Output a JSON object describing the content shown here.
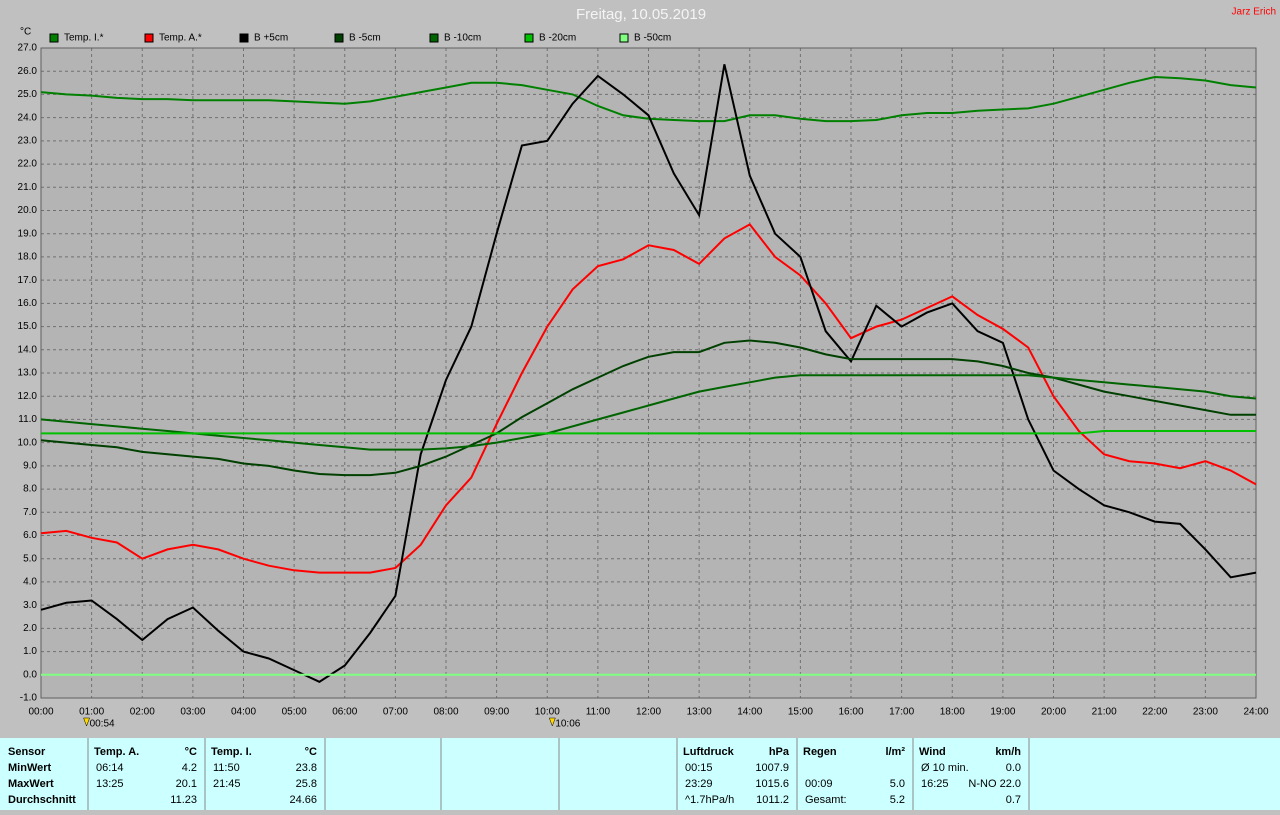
{
  "chart_data": {
    "type": "line",
    "title": "Freitag, 10.05.2019",
    "author": "Jarz Erich",
    "y_unit": "°C",
    "x": [
      0,
      0.5,
      1,
      1.5,
      2,
      2.5,
      3,
      3.5,
      4,
      4.5,
      5,
      5.5,
      6,
      6.5,
      7,
      7.5,
      8,
      8.5,
      9,
      9.5,
      10,
      10.5,
      11,
      11.5,
      12,
      12.5,
      13,
      13.5,
      14,
      14.5,
      15,
      15.5,
      16,
      16.5,
      17,
      17.5,
      18,
      18.5,
      19,
      19.5,
      20,
      20.5,
      21,
      21.5,
      22,
      22.5,
      23,
      23.5,
      24
    ],
    "xlim": [
      0,
      24
    ],
    "xticks": [
      {
        "value": 0,
        "label": "00:00"
      },
      {
        "value": 1,
        "label": "01:00"
      },
      {
        "value": 2,
        "label": "02:00"
      },
      {
        "value": 3,
        "label": "03:00"
      },
      {
        "value": 4,
        "label": "04:00"
      },
      {
        "value": 5,
        "label": "05:00"
      },
      {
        "value": 6,
        "label": "06:00"
      },
      {
        "value": 7,
        "label": "07:00"
      },
      {
        "value": 8,
        "label": "08:00"
      },
      {
        "value": 9,
        "label": "09:00"
      },
      {
        "value": 10,
        "label": "10:00"
      },
      {
        "value": 11,
        "label": "11:00"
      },
      {
        "value": 12,
        "label": "12:00"
      },
      {
        "value": 13,
        "label": "13:00"
      },
      {
        "value": 14,
        "label": "14:00"
      },
      {
        "value": 15,
        "label": "15:00"
      },
      {
        "value": 16,
        "label": "16:00"
      },
      {
        "value": 17,
        "label": "17:00"
      },
      {
        "value": 18,
        "label": "18:00"
      },
      {
        "value": 19,
        "label": "19:00"
      },
      {
        "value": 20,
        "label": "20:00"
      },
      {
        "value": 21,
        "label": "21:00"
      },
      {
        "value": 22,
        "label": "22:00"
      },
      {
        "value": 23,
        "label": "23:00"
      },
      {
        "value": 24,
        "label": "24:00"
      }
    ],
    "ylim": [
      -1,
      27
    ],
    "yticks": [
      {
        "value": -1,
        "label": "-1.0"
      },
      {
        "value": 0,
        "label": "0.0"
      },
      {
        "value": 1,
        "label": "1.0"
      },
      {
        "value": 2,
        "label": "2.0"
      },
      {
        "value": 3,
        "label": "3.0"
      },
      {
        "value": 4,
        "label": "4.0"
      },
      {
        "value": 5,
        "label": "5.0"
      },
      {
        "value": 6,
        "label": "6.0"
      },
      {
        "value": 7,
        "label": "7.0"
      },
      {
        "value": 8,
        "label": "8.0"
      },
      {
        "value": 9,
        "label": "9.0"
      },
      {
        "value": 10,
        "label": "10.0"
      },
      {
        "value": 11,
        "label": "11.0"
      },
      {
        "value": 12,
        "label": "12.0"
      },
      {
        "value": 13,
        "label": "13.0"
      },
      {
        "value": 14,
        "label": "14.0"
      },
      {
        "value": 15,
        "label": "15.0"
      },
      {
        "value": 16,
        "label": "16.0"
      },
      {
        "value": 17,
        "label": "17.0"
      },
      {
        "value": 18,
        "label": "18.0"
      },
      {
        "value": 19,
        "label": "19.0"
      },
      {
        "value": 20,
        "label": "20.0"
      },
      {
        "value": 21,
        "label": "21.0"
      },
      {
        "value": 22,
        "label": "22.0"
      },
      {
        "value": 23,
        "label": "23.0"
      },
      {
        "value": 24,
        "label": "24.0"
      },
      {
        "value": 25,
        "label": "25.0"
      },
      {
        "value": 26,
        "label": "26.0"
      },
      {
        "value": 27,
        "label": "27.0"
      }
    ],
    "grid": true,
    "series": [
      {
        "name": "Temp. I.*",
        "color": "#008000",
        "values": [
          25.1,
          25.0,
          24.95,
          24.85,
          24.8,
          24.8,
          24.75,
          24.75,
          24.75,
          24.75,
          24.7,
          24.65,
          24.6,
          24.7,
          24.9,
          25.1,
          25.3,
          25.5,
          25.5,
          25.4,
          25.2,
          25.0,
          24.5,
          24.1,
          23.95,
          23.9,
          23.85,
          23.85,
          24.1,
          24.1,
          23.95,
          23.85,
          23.85,
          23.9,
          24.1,
          24.2,
          24.2,
          24.3,
          24.35,
          24.4,
          24.6,
          24.9,
          25.2,
          25.5,
          25.75,
          25.7,
          25.6,
          25.4,
          25.3
        ]
      },
      {
        "name": "Temp. A.*",
        "color": "#ff0000",
        "values": [
          6.1,
          6.2,
          5.9,
          5.7,
          5.0,
          5.4,
          5.6,
          5.4,
          5.0,
          4.7,
          4.5,
          4.4,
          4.4,
          4.4,
          4.6,
          5.6,
          7.3,
          8.5,
          10.8,
          13.0,
          15.0,
          16.6,
          17.6,
          17.9,
          18.5,
          18.3,
          17.7,
          18.8,
          19.4,
          18.0,
          17.2,
          16.0,
          14.5,
          15.0,
          15.3,
          15.8,
          16.3,
          15.5,
          14.9,
          14.1,
          12.0,
          10.5,
          9.5,
          9.2,
          9.1,
          8.9,
          9.2,
          8.8,
          8.2
        ]
      },
      {
        "name": "B +5cm",
        "color": "#000000",
        "values": [
          2.8,
          3.1,
          3.2,
          2.4,
          1.5,
          2.4,
          2.9,
          1.9,
          1.0,
          0.7,
          0.2,
          -0.3,
          0.4,
          1.8,
          3.4,
          9.5,
          12.7,
          15.0,
          19.0,
          22.8,
          23.0,
          24.6,
          25.8,
          25.0,
          24.1,
          21.6,
          19.8,
          26.3,
          21.5,
          19.0,
          18.0,
          14.8,
          13.5,
          15.9,
          15.0,
          15.6,
          16.0,
          14.8,
          14.3,
          11.0,
          8.8,
          8.0,
          7.3,
          7.0,
          6.6,
          6.5,
          5.4,
          4.2,
          4.4
        ]
      },
      {
        "name": "B -5cm",
        "color": "#004000",
        "values": [
          10.1,
          10.0,
          9.9,
          9.8,
          9.6,
          9.5,
          9.4,
          9.3,
          9.1,
          9.0,
          8.8,
          8.65,
          8.6,
          8.6,
          8.7,
          9.0,
          9.4,
          9.9,
          10.4,
          11.1,
          11.7,
          12.3,
          12.8,
          13.3,
          13.7,
          13.9,
          13.9,
          14.3,
          14.4,
          14.3,
          14.1,
          13.8,
          13.6,
          13.6,
          13.6,
          13.6,
          13.6,
          13.5,
          13.3,
          13.0,
          12.8,
          12.5,
          12.2,
          12.0,
          11.8,
          11.6,
          11.4,
          11.2,
          11.2
        ]
      },
      {
        "name": "B -10cm",
        "color": "#006400",
        "values": [
          11.0,
          10.9,
          10.8,
          10.7,
          10.6,
          10.5,
          10.4,
          10.3,
          10.2,
          10.1,
          10.0,
          9.9,
          9.8,
          9.7,
          9.7,
          9.7,
          9.75,
          9.85,
          10.0,
          10.2,
          10.4,
          10.7,
          11.0,
          11.3,
          11.6,
          11.9,
          12.2,
          12.4,
          12.6,
          12.8,
          12.9,
          12.9,
          12.9,
          12.9,
          12.9,
          12.9,
          12.9,
          12.9,
          12.9,
          12.9,
          12.8,
          12.7,
          12.6,
          12.5,
          12.4,
          12.3,
          12.2,
          12.0,
          11.9
        ]
      },
      {
        "name": "B -20cm",
        "color": "#00c000",
        "values": [
          10.4,
          10.4,
          10.4,
          10.4,
          10.4,
          10.4,
          10.4,
          10.4,
          10.4,
          10.4,
          10.4,
          10.4,
          10.4,
          10.4,
          10.4,
          10.4,
          10.4,
          10.4,
          10.4,
          10.4,
          10.4,
          10.4,
          10.4,
          10.4,
          10.4,
          10.4,
          10.4,
          10.4,
          10.4,
          10.4,
          10.4,
          10.4,
          10.4,
          10.4,
          10.4,
          10.4,
          10.4,
          10.4,
          10.4,
          10.4,
          10.4,
          10.4,
          10.5,
          10.5,
          10.5,
          10.5,
          10.5,
          10.5,
          10.5
        ]
      },
      {
        "name": "B -50cm",
        "color": "#80ff80",
        "values": [
          0,
          0,
          0,
          0,
          0,
          0,
          0,
          0,
          0,
          0,
          0,
          0,
          0,
          0,
          0,
          0,
          0,
          0,
          0,
          0,
          0,
          0,
          0,
          0,
          0,
          0,
          0,
          0,
          0,
          0,
          0,
          0,
          0,
          0,
          0,
          0,
          0,
          0,
          0,
          0,
          0,
          0,
          0,
          0,
          0,
          0,
          0,
          0,
          0
        ]
      }
    ],
    "annotations": [
      {
        "x": 0.9,
        "text": "00:54"
      },
      {
        "x": 10.1,
        "text": "10:06"
      }
    ]
  },
  "stats": {
    "row_labels": {
      "header": "Sensor",
      "min": "MinWert",
      "max": "MaxWert",
      "avg": "Durchschnitt"
    },
    "groups": [
      {
        "title": "Temp. A.",
        "unit": "°C",
        "min": {
          "time": "06:14",
          "value": "4.2"
        },
        "max": {
          "time": "13:25",
          "value": "20.1"
        },
        "avg": {
          "value": "11.23"
        }
      },
      {
        "title": "Temp. I.",
        "unit": "°C",
        "min": {
          "time": "11:50",
          "value": "23.8"
        },
        "max": {
          "time": "21:45",
          "value": "25.8"
        },
        "avg": {
          "value": "24.66"
        }
      },
      {
        "title": "Luftdruck",
        "unit": "hPa",
        "min": {
          "time": "00:15",
          "value": "1007.9"
        },
        "max": {
          "time": "23:29",
          "value": "1015.6"
        },
        "avg": {
          "time": "^1.7hPa/h",
          "value": "1011.2"
        }
      },
      {
        "title": "Regen",
        "unit": "l/m²",
        "max": {
          "time": "00:09",
          "value": "5.0"
        },
        "avg": {
          "time": "Gesamt:",
          "value": "5.2"
        }
      },
      {
        "title": "Wind",
        "unit": "km/h",
        "min": {
          "time": "Ø 10 min.",
          "value": "0.0"
        },
        "max": {
          "time": "16:25",
          "value": "N-NO 22.0"
        },
        "avg": {
          "value": "0.7"
        }
      }
    ]
  }
}
